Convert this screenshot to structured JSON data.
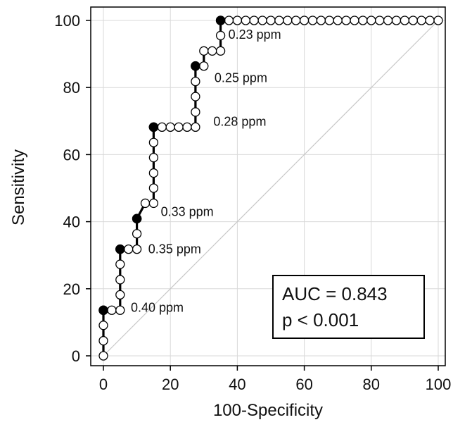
{
  "chart_data": {
    "type": "line",
    "xlabel": "100-Specificity",
    "ylabel": "Sensitivity",
    "xlim": [
      0,
      100
    ],
    "ylim": [
      0,
      100
    ],
    "x_ticks": [
      0,
      20,
      40,
      60,
      80,
      100
    ],
    "y_ticks": [
      0,
      20,
      40,
      60,
      80,
      100
    ],
    "x_tick_labels": [
      "0",
      "20",
      "40",
      "60",
      "80",
      "100"
    ],
    "y_tick_labels": [
      "0",
      "20",
      "40",
      "60",
      "80",
      "100"
    ],
    "grid": true,
    "reference_line": {
      "x": [
        0,
        100
      ],
      "y": [
        0,
        100
      ]
    },
    "roc_curve": {
      "x": [
        0,
        0,
        0,
        0,
        2.5,
        5,
        5,
        5,
        5,
        5,
        7.5,
        10,
        10,
        10,
        12.5,
        15,
        15,
        15,
        15,
        15,
        15,
        15,
        17.5,
        20,
        22.5,
        25,
        27.5,
        27.5,
        27.5,
        27.5,
        27.5,
        30,
        30,
        32.5,
        35,
        35,
        35,
        37.5,
        40,
        42.5,
        45,
        47.5,
        50,
        52.5,
        55,
        57.5,
        60,
        62.5,
        65,
        67.5,
        70,
        72.5,
        75,
        77.5,
        80,
        82.5,
        85,
        87.5,
        90,
        92.5,
        95,
        97.5,
        100
      ],
      "y": [
        0,
        4.5,
        9.1,
        13.6,
        13.6,
        13.6,
        18.2,
        22.7,
        27.3,
        31.8,
        31.8,
        31.8,
        36.4,
        40.9,
        45.5,
        45.5,
        50,
        54.5,
        59.1,
        63.6,
        68.2,
        68.2,
        68.2,
        68.2,
        68.2,
        68.2,
        68.2,
        72.7,
        77.3,
        81.8,
        86.4,
        86.4,
        90.9,
        90.9,
        90.9,
        95.5,
        100,
        100,
        100,
        100,
        100,
        100,
        100,
        100,
        100,
        100,
        100,
        100,
        100,
        100,
        100,
        100,
        100,
        100,
        100,
        100,
        100,
        100,
        100,
        100,
        100,
        100,
        100
      ]
    },
    "criterion_points": [
      {
        "x": 0,
        "y": 13.6,
        "label": "0.40 ppm",
        "label_dx": 39,
        "label_dy": 2
      },
      {
        "x": 5,
        "y": 31.8,
        "label": "0.35 ppm",
        "label_dx": 40,
        "label_dy": 6
      },
      {
        "x": 10,
        "y": 40.9,
        "label": "0.33 ppm",
        "label_dx": 34,
        "label_dy": -4
      },
      {
        "x": 15,
        "y": 68.2,
        "label": "0.28 ppm",
        "label_dx": 85,
        "label_dy": -2
      },
      {
        "x": 27.5,
        "y": 86.4,
        "label": "0.25 ppm",
        "label_dx": 27,
        "label_dy": 23
      },
      {
        "x": 35,
        "y": 100,
        "label": "0.23 ppm",
        "label_dx": 11,
        "label_dy": 26
      }
    ],
    "annotation": {
      "line1": "AUC = 0.843",
      "line2": "p < 0.001"
    }
  }
}
